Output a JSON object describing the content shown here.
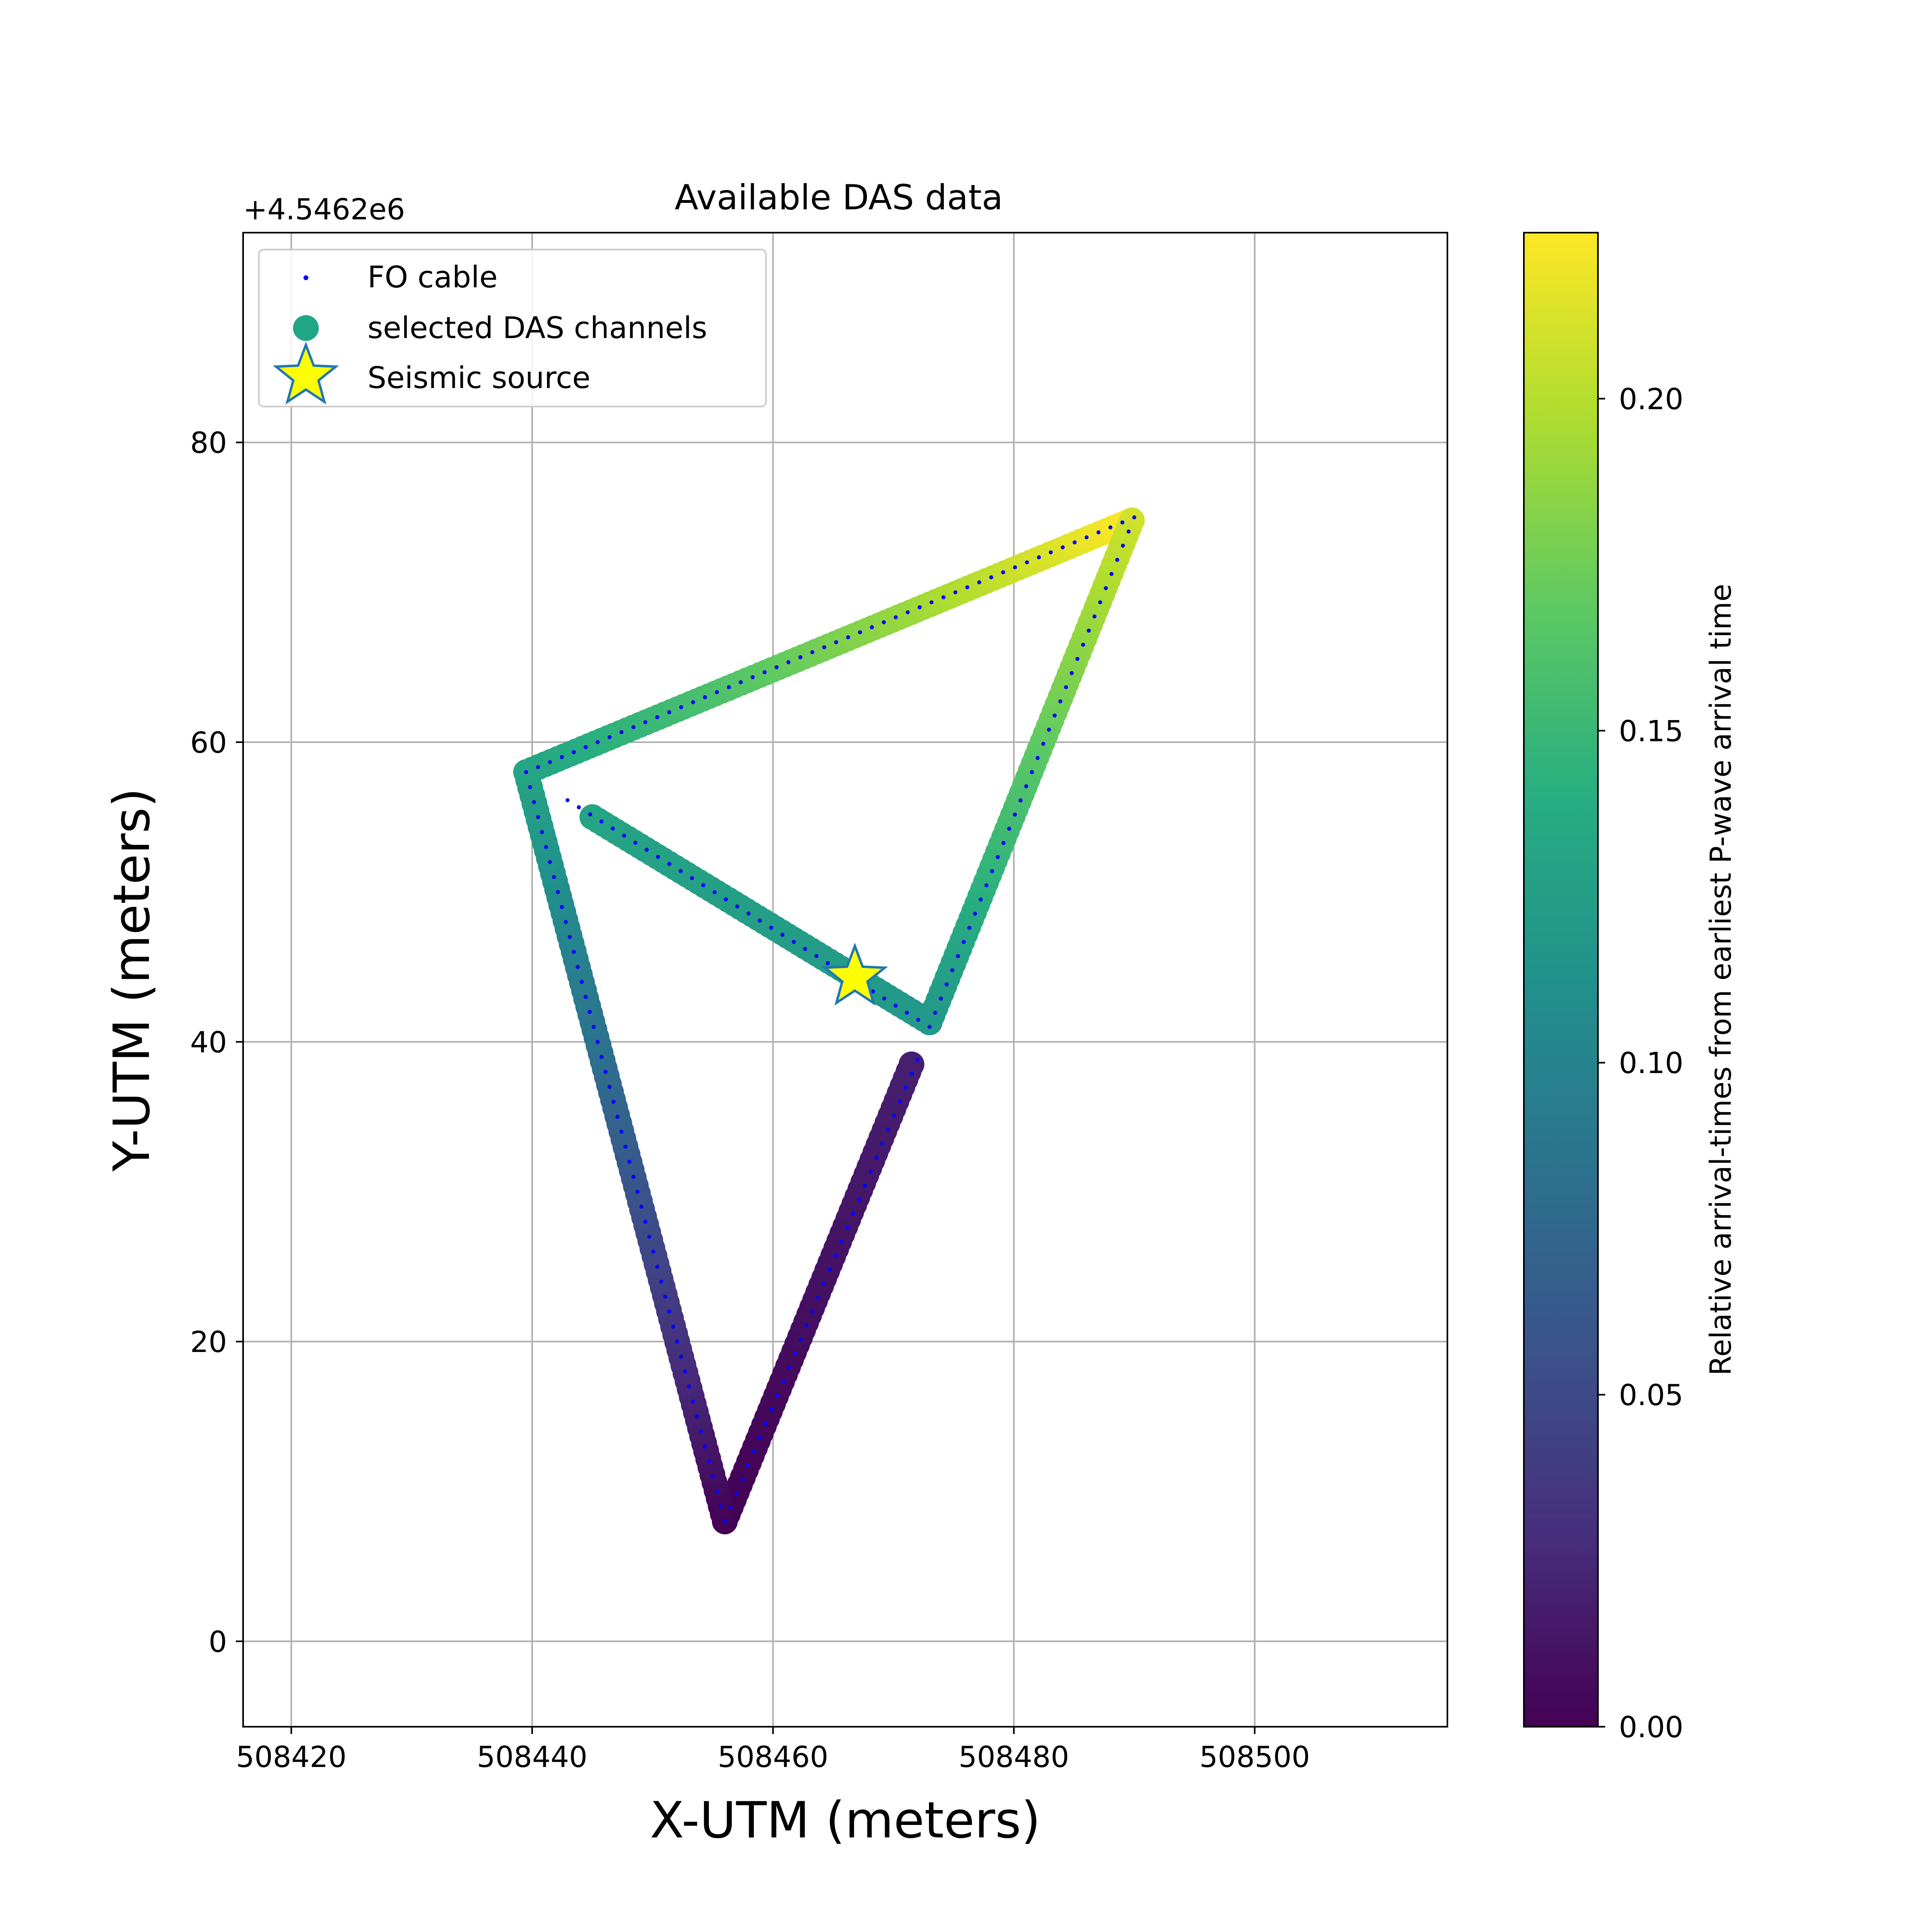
{
  "chart_data": {
    "type": "scatter",
    "title": "Available DAS data",
    "xlabel": "X-UTM (meters)",
    "ylabel": "Y-UTM (meters)",
    "y_offset_label": "+4.5462e6",
    "xlim": [
      508416,
      508516
    ],
    "ylim": [
      -5.7,
      94
    ],
    "xticks": [
      508420,
      508440,
      508460,
      508480,
      508500
    ],
    "yticks": [
      0,
      20,
      40,
      60,
      80
    ],
    "grid": true,
    "legend_position": "top-left",
    "legend": [
      {
        "label": "FO cable",
        "marker": "dot",
        "color": "#0000ff"
      },
      {
        "label": "selected DAS channels",
        "marker": "circle",
        "color": "#21a685"
      },
      {
        "label": "Seismic source",
        "marker": "star",
        "color": "#ffff00",
        "edge_color": "#1f77b4"
      }
    ],
    "colorbar": {
      "label": "Relative arrival-times from earliest P-wave arrival time",
      "colormap": "viridis",
      "range": [
        0,
        0.225
      ],
      "ticks": [
        0.0,
        0.05,
        0.1,
        0.15,
        0.2
      ],
      "tick_labels": [
        "0.00",
        "0.05",
        "0.10",
        "0.15",
        "0.20"
      ]
    },
    "fo_cable_path": [
      [
        508472,
        38.8
      ],
      [
        508456,
        8
      ],
      [
        508439.5,
        58
      ],
      [
        508490,
        75
      ],
      [
        508473,
        41
      ],
      [
        508442,
        56.6
      ]
    ],
    "channel_segments": [
      {
        "from": [
          508471.5,
          38.5
        ],
        "to": [
          508456,
          8
        ],
        "t_from": 0.02,
        "t_to": 0.0
      },
      {
        "from": [
          508456,
          8
        ],
        "to": [
          508439.5,
          58
        ],
        "t_from": 0.0,
        "t_to": 0.13
      },
      {
        "from": [
          508439.5,
          58
        ],
        "to": [
          508489.8,
          74.8
        ],
        "t_from": 0.13,
        "t_to": 0.225
      },
      {
        "from": [
          508489.8,
          74.8
        ],
        "to": [
          508473,
          41.3
        ],
        "t_from": 0.21,
        "t_to": 0.12
      },
      {
        "from": [
          508473,
          41.3
        ],
        "to": [
          508445,
          55
        ],
        "t_from": 0.12,
        "t_to": 0.13
      }
    ],
    "seismic_source": {
      "x": 508466.8,
      "y": 44.3
    }
  }
}
